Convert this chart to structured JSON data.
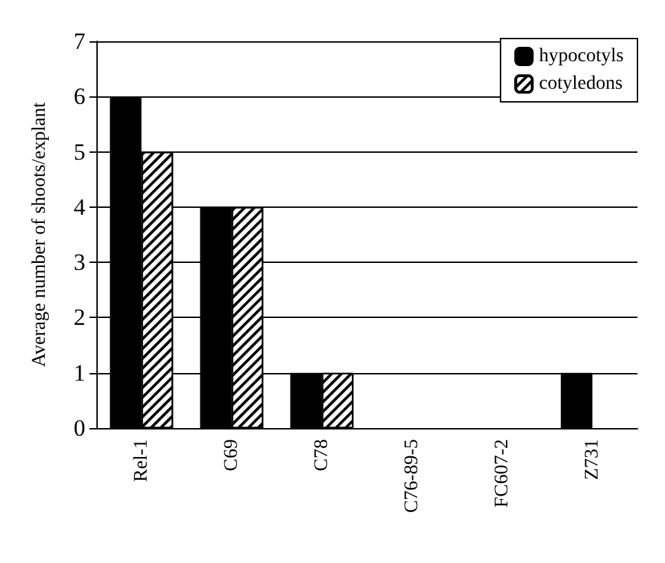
{
  "chart_data": {
    "type": "bar",
    "ylabel": "Average number of shoots/explant",
    "categories": [
      "Rel-1",
      "C69",
      "C78",
      "C76-89-5",
      "FC607-2",
      "Z731"
    ],
    "series": [
      {
        "name": "hypocotyls",
        "color": "#000000",
        "values": [
          6,
          4,
          1,
          0,
          0,
          1
        ]
      },
      {
        "name": "cotyledons",
        "color": "#ffffff",
        "values": [
          5,
          4,
          1,
          0,
          0,
          0
        ]
      }
    ],
    "ylim": [
      0,
      7
    ],
    "yticks": [
      0,
      1,
      2,
      3,
      4,
      5,
      6,
      7
    ],
    "grid": "y",
    "legend": "top right"
  }
}
